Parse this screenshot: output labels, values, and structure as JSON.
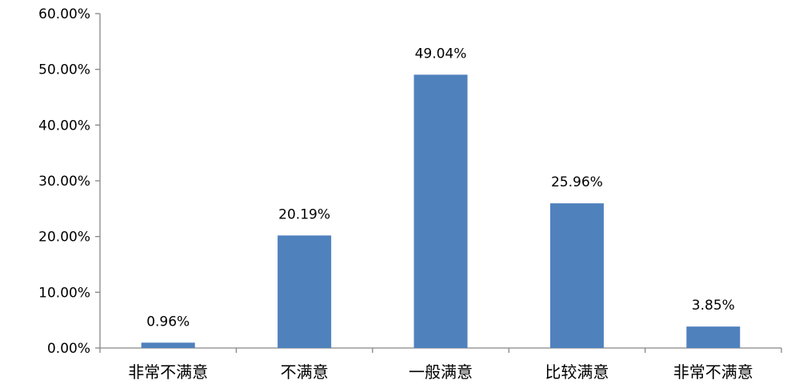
{
  "chart_data": {
    "type": "bar",
    "categories": [
      "非常不满意",
      "不满意",
      "一般满意",
      "比较满意",
      "非常不满意"
    ],
    "values": [
      0.96,
      20.19,
      49.04,
      25.96,
      3.85
    ],
    "value_labels": [
      "0.96%",
      "20.19%",
      "49.04%",
      "25.96%",
      "3.85%"
    ],
    "ylim": [
      0,
      60
    ],
    "yticks": [
      0,
      10,
      20,
      30,
      40,
      50,
      60
    ],
    "ytick_labels": [
      "0.00%",
      "10.00%",
      "20.00%",
      "30.00%",
      "40.00%",
      "50.00%",
      "60.00%"
    ],
    "grid": false,
    "bar_color": "#4F81BD",
    "axis_color": "#868686"
  }
}
